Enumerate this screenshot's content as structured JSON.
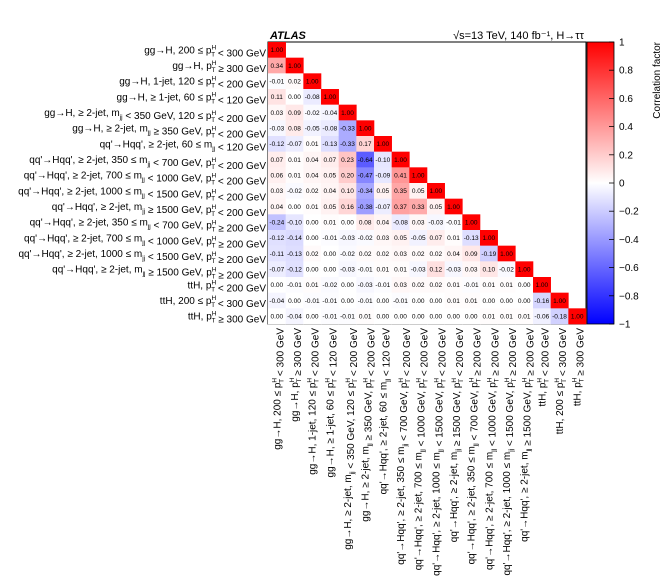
{
  "chart_data": {
    "type": "heatmap",
    "experiment": "ATLAS",
    "energy_label": "√s=13 TeV, 140 fb⁻¹, H→ττ",
    "colorbar_label": "Correlation factor",
    "colorbar_range": [
      -1,
      1
    ],
    "colorbar_ticks": [
      "1",
      "0.8",
      "0.6",
      "0.4",
      "0.2",
      "0",
      "−0.2",
      "−0.4",
      "−0.6",
      "−0.8",
      "−1"
    ],
    "colors": {
      "positive": "#ff0000",
      "negative": "#0000ff",
      "neutral": "#ffffff"
    },
    "categories": [
      "gg→H, 200 ≤ pT^H < 300 GeV",
      "gg→H, pT^H ≥ 300 GeV",
      "gg→H, 1-jet, 120 ≤ pT^H < 200 GeV",
      "gg→H, ≥ 1-jet, 60 ≤ pT^H < 120 GeV",
      "gg→H, ≥ 2-jet, mjj < 350 GeV, 120 ≤ pT^H < 200 GeV",
      "gg→H, ≥ 2-jet, mjj ≥ 350 GeV, pT^H < 200 GeV",
      "qq'→Hqq', ≥ 2-jet, 60 ≤ mjj < 120 GeV",
      "qq'→Hqq', ≥ 2-jet, 350 ≤ mjj < 700 GeV, pT^H < 200 GeV",
      "qq'→Hqq', ≥ 2-jet, 700 ≤ mjj < 1000 GeV, pT^H < 200 GeV",
      "qq'→Hqq', ≥ 2-jet, 1000 ≤ mjj < 1500 GeV, pT^H < 200 GeV",
      "qq'→Hqq', ≥ 2-jet, mjj ≥ 1500 GeV, pT^H < 200 GeV",
      "qq'→Hqq', ≥ 2-jet, 350 ≤ mjj < 700 GeV, pT^H ≥ 200 GeV",
      "qq'→Hqq', ≥ 2-jet, 700 ≤ mjj < 1000 GeV, pT^H ≥ 200 GeV",
      "qq'→Hqq', ≥ 2-jet, 1000 ≤ mjj < 1500 GeV, pT^H ≥ 200 GeV",
      "qq'→Hqq', ≥ 2-jet, mjj ≥ 1500 GeV, pT^H ≥ 200 GeV",
      "ttH, pT^H < 200 GeV",
      "ttH, 200 ≤ pT^H < 300 GeV",
      "ttH, pT^H ≥ 300 GeV"
    ],
    "matrix": [
      [
        1.0
      ],
      [
        0.34,
        1.0
      ],
      [
        -0.01,
        0.02,
        1.0
      ],
      [
        0.11,
        0.0,
        -0.08,
        1.0
      ],
      [
        0.03,
        0.09,
        -0.02,
        -0.04,
        1.0
      ],
      [
        -0.03,
        0.08,
        -0.05,
        -0.08,
        -0.33,
        1.0
      ],
      [
        -0.12,
        -0.07,
        0.01,
        -0.13,
        -0.33,
        0.17,
        1.0
      ],
      [
        0.07,
        0.01,
        0.04,
        0.07,
        0.23,
        -0.64,
        -0.1,
        1.0
      ],
      [
        0.06,
        0.01,
        0.04,
        0.05,
        0.2,
        -0.47,
        -0.09,
        0.41,
        1.0
      ],
      [
        0.03,
        -0.02,
        0.02,
        0.04,
        0.1,
        -0.34,
        0.05,
        0.35,
        0.05,
        1.0
      ],
      [
        0.04,
        0.0,
        0.01,
        0.05,
        0.16,
        -0.38,
        -0.07,
        0.37,
        0.33,
        0.05,
        1.0
      ],
      [
        -0.24,
        -0.1,
        0.0,
        0.01,
        0.0,
        0.08,
        0.04,
        -0.08,
        0.03,
        -0.03,
        -0.01,
        1.0
      ],
      [
        -0.12,
        -0.14,
        -0.0,
        -0.01,
        -0.03,
        -0.02,
        0.03,
        0.05,
        -0.05,
        0.07,
        0.01,
        -0.13,
        1.0
      ],
      [
        -0.11,
        -0.13,
        0.02,
        0.0,
        -0.02,
        0.02,
        0.02,
        0.03,
        0.02,
        0.02,
        0.04,
        0.09,
        -0.19,
        1.0
      ],
      [
        -0.07,
        -0.12,
        0.0,
        0.0,
        -0.03,
        -0.01,
        0.01,
        0.01,
        -0.03,
        0.12,
        -0.03,
        0.03,
        0.1,
        -0.02,
        1.0
      ],
      [
        -0.0,
        -0.01,
        0.01,
        -0.02,
        -0.0,
        -0.03,
        -0.01,
        0.03,
        0.02,
        0.02,
        0.01,
        -0.01,
        0.01,
        0.01,
        0.0,
        1.0
      ],
      [
        -0.04,
        0.0,
        -0.01,
        -0.01,
        -0.0,
        -0.01,
        0.0,
        -0.01,
        0.0,
        -0.0,
        0.01,
        0.01,
        0.0,
        0.0,
        -0.0,
        -0.16,
        1.0
      ],
      [
        0.0,
        -0.04,
        0.0,
        -0.01,
        -0.01,
        0.01,
        -0.0,
        -0.0,
        0.0,
        -0.0,
        0.0,
        0.0,
        0.01,
        0.01,
        0.01,
        -0.06,
        -0.18,
        1.0
      ]
    ]
  }
}
